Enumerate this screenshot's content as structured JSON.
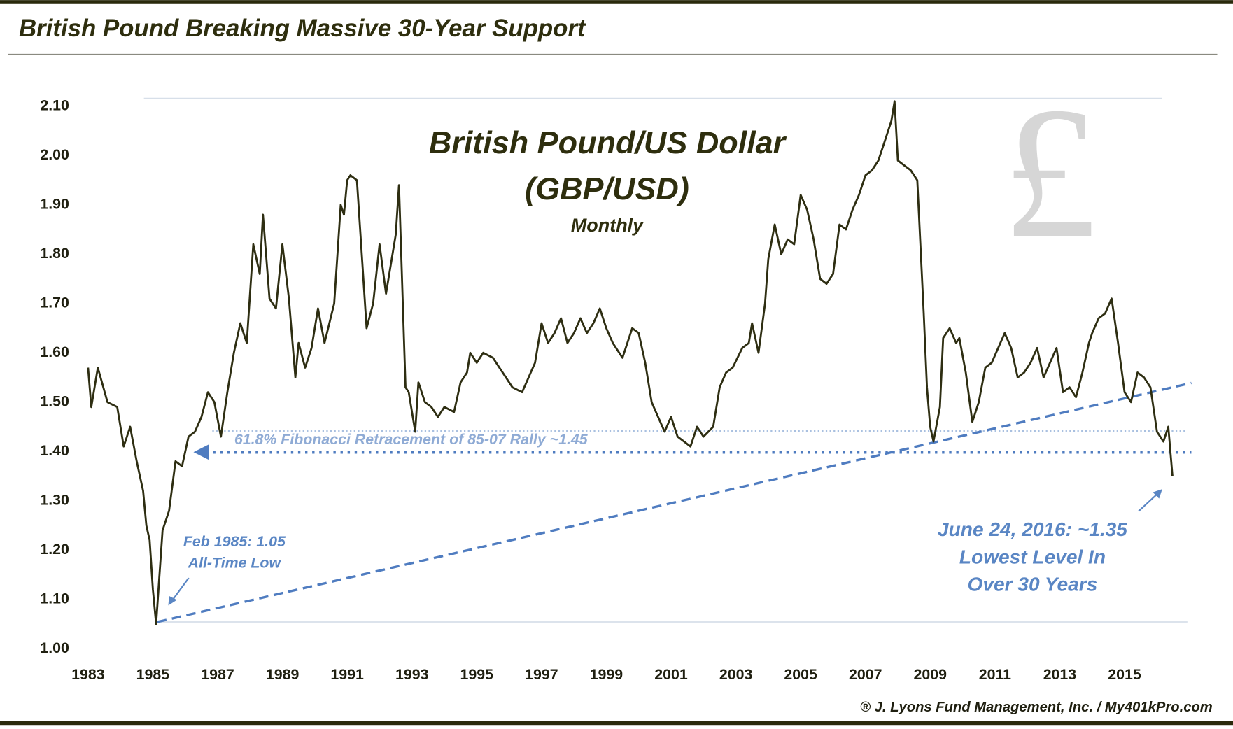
{
  "header": {
    "title": "British Pound Breaking Massive 30-Year Support",
    "credit": "® J. Lyons Fund Management, Inc. / My401kPro.com"
  },
  "chart_data": {
    "type": "line",
    "title": [
      "British Pound/US Dollar",
      "(GBP/USD)"
    ],
    "subtitle": "Monthly",
    "watermark": "£",
    "annotations": {
      "fibonacci": "61.8% Fibonacci Retracement of 85-07 Rally ~1.45",
      "low": [
        "Feb 1985: 1.05",
        "All-Time Low"
      ],
      "recent": [
        "June 24, 2016: ~1.35",
        "Lowest Level In",
        "Over 30 Years"
      ]
    },
    "x": [
      1983.0,
      1983.1,
      1983.3,
      1983.6,
      1983.9,
      1984.1,
      1984.3,
      1984.5,
      1984.7,
      1984.8,
      1984.9,
      1985.0,
      1985.1,
      1985.3,
      1985.5,
      1985.7,
      1985.9,
      1986.1,
      1986.3,
      1986.5,
      1986.7,
      1986.9,
      1987.1,
      1987.3,
      1987.5,
      1987.7,
      1987.9,
      1988.1,
      1988.3,
      1988.4,
      1988.6,
      1988.8,
      1989.0,
      1989.2,
      1989.4,
      1989.5,
      1989.7,
      1989.9,
      1990.1,
      1990.3,
      1990.6,
      1990.8,
      1990.9,
      1991.0,
      1991.1,
      1991.3,
      1991.5,
      1991.6,
      1991.8,
      1992.0,
      1992.2,
      1992.5,
      1992.6,
      1992.8,
      1992.9,
      1993.1,
      1993.2,
      1993.4,
      1993.6,
      1993.8,
      1994.0,
      1994.3,
      1994.5,
      1994.7,
      1994.8,
      1995.0,
      1995.2,
      1995.5,
      1995.7,
      1995.9,
      1996.1,
      1996.4,
      1996.6,
      1996.8,
      1997.0,
      1997.2,
      1997.4,
      1997.6,
      1997.8,
      1998.0,
      1998.2,
      1998.4,
      1998.6,
      1998.8,
      1999.0,
      1999.2,
      1999.5,
      1999.8,
      2000.0,
      2000.2,
      2000.4,
      2000.6,
      2000.8,
      2001.0,
      2001.2,
      2001.4,
      2001.6,
      2001.8,
      2002.0,
      2002.3,
      2002.5,
      2002.7,
      2002.9,
      2003.2,
      2003.4,
      2003.5,
      2003.7,
      2003.9,
      2004.0,
      2004.2,
      2004.4,
      2004.6,
      2004.8,
      2005.0,
      2005.2,
      2005.4,
      2005.6,
      2005.8,
      2006.0,
      2006.2,
      2006.4,
      2006.6,
      2006.8,
      2007.0,
      2007.2,
      2007.4,
      2007.6,
      2007.8,
      2007.9,
      2008.0,
      2008.2,
      2008.4,
      2008.6,
      2008.8,
      2008.9,
      2009.0,
      2009.1,
      2009.3,
      2009.4,
      2009.6,
      2009.8,
      2009.9,
      2010.1,
      2010.3,
      2010.5,
      2010.7,
      2010.9,
      2011.1,
      2011.3,
      2011.5,
      2011.7,
      2011.9,
      2012.1,
      2012.3,
      2012.5,
      2012.7,
      2012.9,
      2013.1,
      2013.3,
      2013.5,
      2013.7,
      2013.9,
      2014.0,
      2014.2,
      2014.4,
      2014.6,
      2014.8,
      2015.0,
      2015.2,
      2015.4,
      2015.6,
      2015.8,
      2016.0,
      2016.2,
      2016.35,
      2016.48
    ],
    "series": [
      {
        "name": "GBP/USD",
        "color": "#2e2e12",
        "values": [
          1.57,
          1.49,
          1.57,
          1.5,
          1.49,
          1.41,
          1.45,
          1.38,
          1.32,
          1.25,
          1.22,
          1.12,
          1.05,
          1.24,
          1.28,
          1.38,
          1.37,
          1.43,
          1.44,
          1.47,
          1.52,
          1.5,
          1.43,
          1.52,
          1.6,
          1.66,
          1.62,
          1.82,
          1.76,
          1.88,
          1.71,
          1.69,
          1.82,
          1.71,
          1.55,
          1.62,
          1.57,
          1.61,
          1.69,
          1.62,
          1.7,
          1.9,
          1.88,
          1.95,
          1.96,
          1.95,
          1.75,
          1.65,
          1.7,
          1.82,
          1.72,
          1.84,
          1.94,
          1.53,
          1.52,
          1.44,
          1.54,
          1.5,
          1.49,
          1.47,
          1.49,
          1.48,
          1.54,
          1.56,
          1.6,
          1.58,
          1.6,
          1.59,
          1.57,
          1.55,
          1.53,
          1.52,
          1.55,
          1.58,
          1.66,
          1.62,
          1.64,
          1.67,
          1.62,
          1.64,
          1.67,
          1.64,
          1.66,
          1.69,
          1.65,
          1.62,
          1.59,
          1.65,
          1.64,
          1.58,
          1.5,
          1.47,
          1.44,
          1.47,
          1.43,
          1.42,
          1.41,
          1.45,
          1.43,
          1.45,
          1.53,
          1.56,
          1.57,
          1.61,
          1.62,
          1.66,
          1.6,
          1.7,
          1.79,
          1.86,
          1.8,
          1.83,
          1.82,
          1.92,
          1.89,
          1.83,
          1.75,
          1.74,
          1.76,
          1.86,
          1.85,
          1.89,
          1.92,
          1.96,
          1.97,
          1.99,
          2.03,
          2.07,
          2.11,
          1.99,
          1.98,
          1.97,
          1.95,
          1.68,
          1.53,
          1.45,
          1.42,
          1.49,
          1.63,
          1.65,
          1.62,
          1.63,
          1.56,
          1.46,
          1.5,
          1.57,
          1.58,
          1.61,
          1.64,
          1.61,
          1.55,
          1.56,
          1.58,
          1.61,
          1.55,
          1.58,
          1.61,
          1.52,
          1.53,
          1.51,
          1.56,
          1.62,
          1.64,
          1.67,
          1.68,
          1.71,
          1.62,
          1.52,
          1.5,
          1.56,
          1.55,
          1.53,
          1.44,
          1.42,
          1.45,
          1.35
        ]
      }
    ],
    "xlim": [
      1983,
      2017
    ],
    "xticks": [
      1983,
      1985,
      1987,
      1989,
      1991,
      1993,
      1995,
      1997,
      1999,
      2001,
      2003,
      2005,
      2007,
      2009,
      2011,
      2013,
      2015
    ],
    "ylim": [
      1.0,
      2.1
    ],
    "yticks": [
      {
        "value": 1.0,
        "label": "1.00"
      },
      {
        "value": 1.1,
        "label": "1.10"
      },
      {
        "value": 1.2,
        "label": "1.20"
      },
      {
        "value": 1.3,
        "label": "1.30"
      },
      {
        "value": 1.4,
        "label": "1.40"
      },
      {
        "value": 1.5,
        "label": "1.50"
      },
      {
        "value": 1.6,
        "label": "1.60"
      },
      {
        "value": 1.7,
        "label": "1.70"
      },
      {
        "value": 1.8,
        "label": "1.80"
      },
      {
        "value": 1.9,
        "label": "1.90"
      },
      {
        "value": 2.0,
        "label": "2.00"
      },
      {
        "value": 2.1,
        "label": "2.10"
      }
    ],
    "grid": false
  }
}
